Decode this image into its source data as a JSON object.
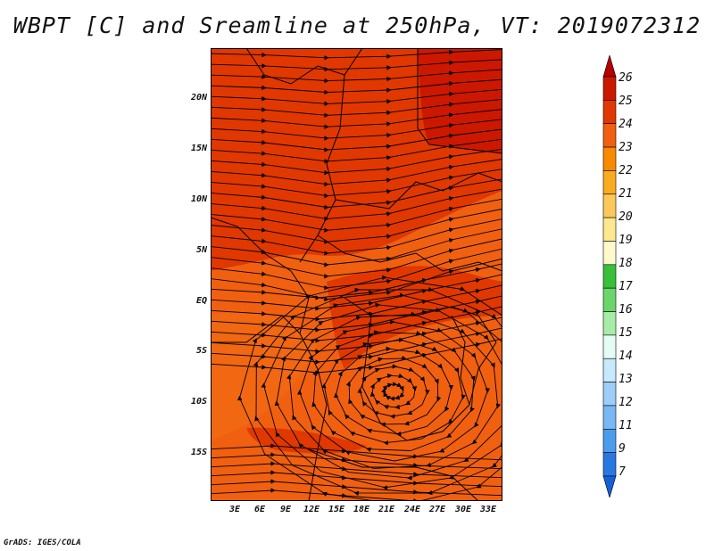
{
  "title": "WBPT [C] and Sreamline at 250hPa, VT: 2019072312",
  "footer": "GrADS: IGES/COLA",
  "map": {
    "region": "Central/East Africa",
    "field": "wet-bulb potential temperature",
    "overlay": "streamlines",
    "y_axis_labels": [
      "20N",
      "15N",
      "10N",
      "5N",
      "EQ",
      "5S",
      "10S",
      "15S"
    ],
    "x_axis_labels": [
      "3E",
      "6E",
      "9E",
      "12E",
      "15E",
      "18E",
      "21E",
      "24E",
      "27E",
      "30E",
      "33E"
    ],
    "background_color": "#f06010"
  },
  "colorbar": {
    "labels": [
      "26",
      "25",
      "24",
      "23",
      "22",
      "21",
      "20",
      "19",
      "18",
      "17",
      "16",
      "15",
      "14",
      "13",
      "12",
      "11",
      "9",
      "7"
    ],
    "colors": [
      "#b40000",
      "#cc1800",
      "#e03800",
      "#f06010",
      "#f88a00",
      "#fbab20",
      "#fcc85a",
      "#fde890",
      "#fffacc",
      "#38c038",
      "#6ad66a",
      "#a8eca8",
      "#e6faf6",
      "#c8e8fc",
      "#9ccef8",
      "#78b8f4",
      "#4c9cee",
      "#2878e2",
      "#1660d6"
    ]
  }
}
